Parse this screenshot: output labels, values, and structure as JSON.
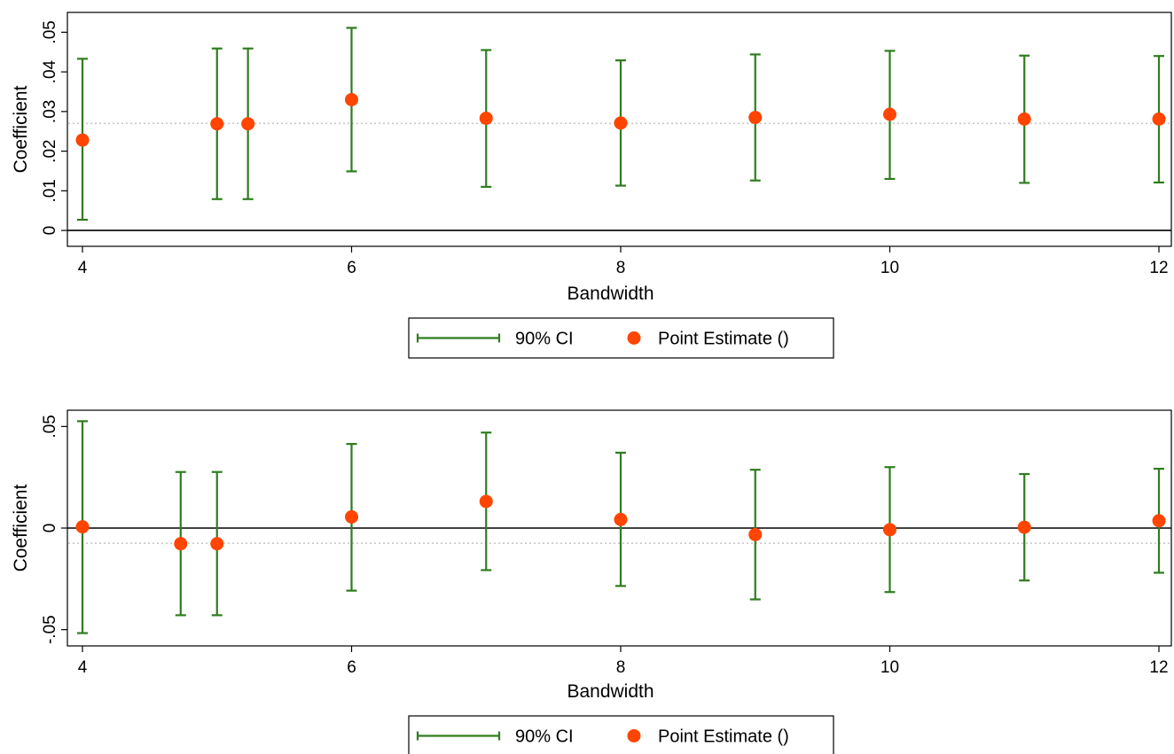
{
  "colors": {
    "ci": "#2e7d1e",
    "point": "#ff4500",
    "ref_line": "#c8c8c8",
    "zero_line": "#000000",
    "frame": "#000000"
  },
  "chart_data": [
    {
      "type": "scatter",
      "xlabel": "Bandwidth",
      "ylabel": "Coefficient",
      "xlim": [
        4,
        12
      ],
      "ylim": [
        -0.004,
        0.055
      ],
      "x_ticks": [
        4,
        6,
        8,
        10,
        12
      ],
      "x_tick_labels": [
        "4",
        "6",
        "8",
        "10",
        "12"
      ],
      "y_ticks": [
        0,
        0.01,
        0.02,
        0.03,
        0.04,
        0.05
      ],
      "y_tick_labels": [
        "0",
        ".01",
        ".02",
        ".03",
        ".04",
        ".05"
      ],
      "zero_line": 0,
      "reference_line": 0.027,
      "grid": false,
      "legend": {
        "placement": "bottom-center",
        "items": [
          {
            "symbol": "ci",
            "label": "90% CI"
          },
          {
            "symbol": "point",
            "label": "Point Estimate ()"
          }
        ]
      },
      "series": [
        {
          "name": "Point Estimate ()",
          "x": [
            4,
            5,
            5.23,
            6,
            7,
            8,
            9,
            10,
            11,
            12
          ],
          "y": [
            0.0228,
            0.0269,
            0.0269,
            0.033,
            0.0283,
            0.0271,
            0.0285,
            0.0293,
            0.0281,
            0.0281
          ]
        },
        {
          "name": "90% CI",
          "x": [
            4,
            5,
            5.23,
            6,
            7,
            8,
            9,
            10,
            11,
            12
          ],
          "lower": [
            0.0027,
            0.0079,
            0.0079,
            0.0149,
            0.011,
            0.0113,
            0.0126,
            0.013,
            0.012,
            0.0121
          ],
          "upper": [
            0.0433,
            0.0459,
            0.0459,
            0.0511,
            0.0455,
            0.0429,
            0.0444,
            0.0453,
            0.0441,
            0.044
          ]
        }
      ]
    },
    {
      "type": "scatter",
      "xlabel": "Bandwidth",
      "ylabel": "Coefficient",
      "xlim": [
        4,
        12
      ],
      "ylim": [
        -0.058,
        0.058
      ],
      "x_ticks": [
        4,
        6,
        8,
        10,
        12
      ],
      "x_tick_labels": [
        "4",
        "6",
        "8",
        "10",
        "12"
      ],
      "y_ticks": [
        -0.05,
        0,
        0.05
      ],
      "y_tick_labels": [
        "-.05",
        "0",
        ".05"
      ],
      "zero_line": 0,
      "reference_line": -0.0075,
      "grid": false,
      "legend": {
        "placement": "bottom-center",
        "items": [
          {
            "symbol": "ci",
            "label": "90% CI"
          },
          {
            "symbol": "point",
            "label": "Point Estimate ()"
          }
        ]
      },
      "series": [
        {
          "name": "Point Estimate ()",
          "x": [
            4,
            4.73,
            5,
            6,
            7,
            8,
            9,
            10,
            11,
            12
          ],
          "y": [
            0.0006,
            -0.0077,
            -0.0077,
            0.0055,
            0.0131,
            0.0042,
            -0.0032,
            -0.0008,
            0.0004,
            0.0036
          ]
        },
        {
          "name": "90% CI",
          "x": [
            4,
            4.73,
            5,
            6,
            7,
            8,
            9,
            10,
            11,
            12
          ],
          "lower": [
            -0.0517,
            -0.0429,
            -0.0429,
            -0.0308,
            -0.0207,
            -0.0285,
            -0.0351,
            -0.0315,
            -0.0258,
            -0.022
          ],
          "upper": [
            0.0526,
            0.0276,
            0.0276,
            0.0414,
            0.047,
            0.0371,
            0.0287,
            0.03,
            0.0266,
            0.0292
          ]
        }
      ]
    }
  ]
}
